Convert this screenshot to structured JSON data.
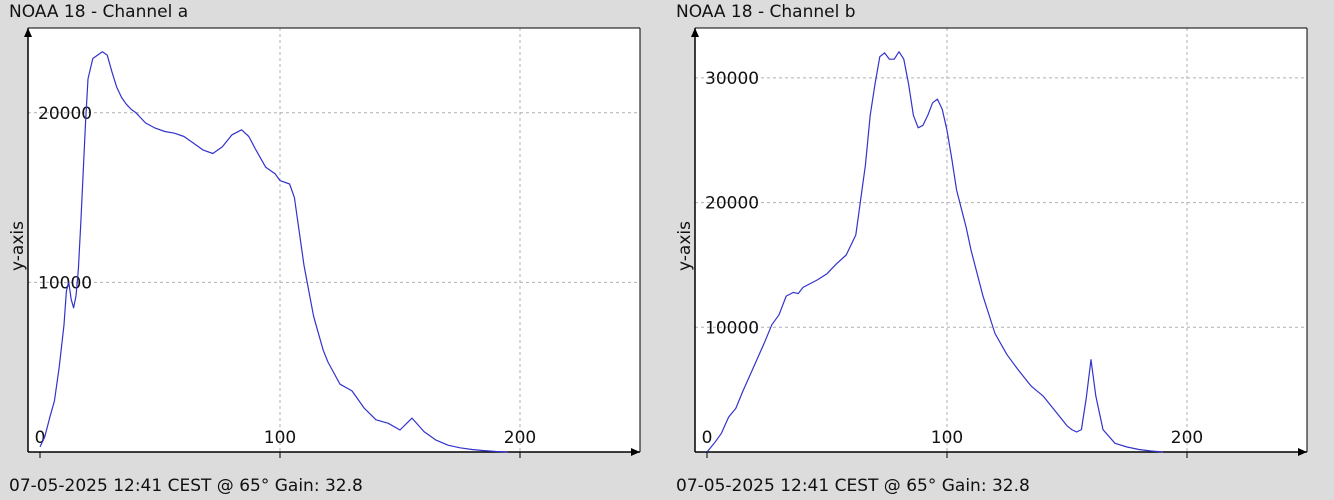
{
  "chart_data": [
    {
      "type": "line",
      "title": "NOAA 18 - Channel a",
      "footer": "07-05-2025 12:41 CEST @ 65° Gain: 32.8",
      "xlabel": "",
      "ylabel": "y-axis",
      "xlim": [
        0,
        250
      ],
      "ylim": [
        0,
        25000
      ],
      "x_ticks": [
        0,
        100,
        200
      ],
      "y_ticks": [
        10000,
        20000
      ],
      "grid": true,
      "line_color": "#3333cc",
      "series": [
        {
          "x": [
            0,
            2,
            4,
            6,
            8,
            10,
            11,
            12,
            13,
            14,
            15,
            16,
            17,
            18,
            19,
            20,
            22,
            24,
            26,
            28,
            30,
            32,
            34,
            36,
            38,
            40,
            44,
            48,
            52,
            56,
            60,
            64,
            68,
            72,
            76,
            80,
            84,
            87,
            90,
            94,
            98,
            100,
            104,
            106,
            108,
            110,
            112,
            114,
            116,
            118,
            120,
            125,
            130,
            135,
            140,
            145,
            150,
            155,
            160,
            165,
            170,
            175,
            180,
            185,
            190,
            195
          ],
          "y": [
            300,
            900,
            2000,
            3000,
            5000,
            7500,
            9500,
            10000,
            9000,
            8500,
            9200,
            10800,
            13500,
            16500,
            19500,
            22000,
            23200,
            23400,
            23600,
            23400,
            22400,
            21500,
            20900,
            20500,
            20200,
            20000,
            19400,
            19100,
            18900,
            18800,
            18600,
            18200,
            17800,
            17600,
            18000,
            18700,
            19000,
            18600,
            17800,
            16800,
            16400,
            16000,
            15800,
            15000,
            13000,
            11000,
            9500,
            8000,
            7000,
            6000,
            5300,
            4000,
            3600,
            2600,
            1900,
            1700,
            1300,
            2000,
            1200,
            700,
            400,
            250,
            150,
            80,
            30,
            0
          ]
        }
      ]
    },
    {
      "type": "line",
      "title": "NOAA 18 - Channel b",
      "footer": "07-05-2025 12:41 CEST @ 65° Gain: 32.8",
      "xlabel": "",
      "ylabel": "y-axis",
      "xlim": [
        0,
        250
      ],
      "ylim": [
        0,
        34000
      ],
      "x_ticks": [
        0,
        100,
        200
      ],
      "y_ticks": [
        10000,
        20000,
        30000
      ],
      "grid": true,
      "line_color": "#3333cc",
      "series": [
        {
          "x": [
            0,
            3,
            6,
            9,
            12,
            15,
            18,
            21,
            24,
            27,
            30,
            33,
            36,
            38,
            40,
            43,
            46,
            50,
            54,
            58,
            62,
            66,
            68,
            70,
            72,
            74,
            76,
            78,
            80,
            82,
            84,
            86,
            88,
            90,
            92,
            94,
            96,
            98,
            100,
            102,
            104,
            106,
            108,
            110,
            115,
            120,
            125,
            130,
            135,
            140,
            145,
            150,
            152,
            154,
            156,
            158,
            160,
            162,
            165,
            170,
            175,
            180,
            185,
            190
          ],
          "y": [
            0,
            700,
            1500,
            2800,
            3500,
            4900,
            6200,
            7500,
            8800,
            10200,
            11000,
            12500,
            12800,
            12700,
            13200,
            13500,
            13800,
            14300,
            15100,
            15800,
            17400,
            23000,
            27000,
            29500,
            31700,
            32000,
            31500,
            31500,
            32100,
            31500,
            29500,
            27000,
            26000,
            26200,
            27000,
            28000,
            28300,
            27500,
            25800,
            23500,
            21000,
            19500,
            18000,
            16200,
            12500,
            9500,
            7800,
            6500,
            5300,
            4500,
            3300,
            2100,
            1800,
            1600,
            1800,
            4300,
            7400,
            4500,
            1800,
            700,
            400,
            200,
            80,
            0
          ]
        }
      ]
    }
  ]
}
